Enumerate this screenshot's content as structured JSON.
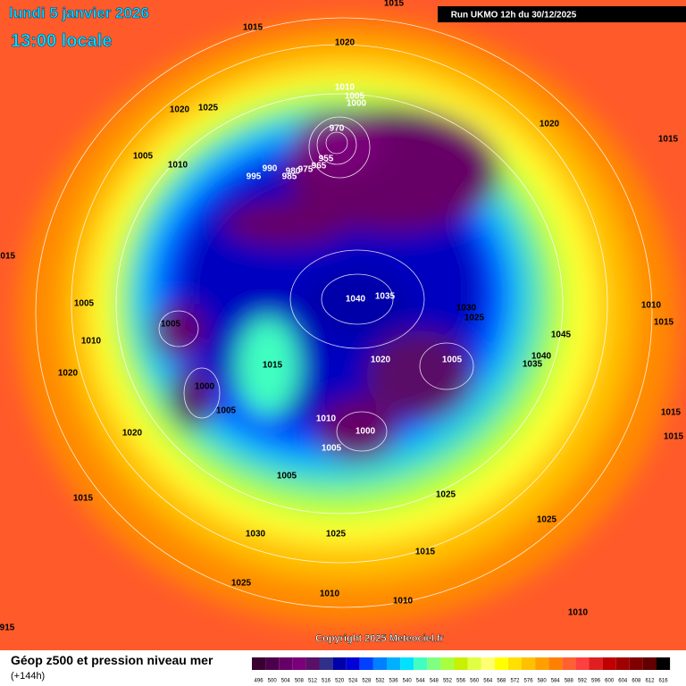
{
  "header": {
    "date": "lundi 5 janvier 2026",
    "time": "13:00 locale",
    "run": "Run UKMO 12h du 30/12/2025"
  },
  "copyright": "Copyright 2025 Meteociel.fr",
  "footer": {
    "title": "Géop z500 et pression niveau mer",
    "subtitle": "(+144h)"
  },
  "colorbar": {
    "values": [
      496,
      500,
      504,
      508,
      512,
      516,
      520,
      524,
      528,
      532,
      536,
      540,
      544,
      548,
      552,
      556,
      560,
      564,
      568,
      572,
      576,
      580,
      584,
      588,
      592,
      596,
      600,
      604,
      608,
      612,
      616
    ],
    "colors": [
      "#3a0030",
      "#4b004b",
      "#660066",
      "#7a007a",
      "#5a1066",
      "#30308a",
      "#0000a8",
      "#0000d8",
      "#0040ff",
      "#0080ff",
      "#00b0ff",
      "#00e0ff",
      "#40ffc0",
      "#80ff80",
      "#a8ff40",
      "#c8f000",
      "#e0ff40",
      "#ffff70",
      "#ffff00",
      "#ffe000",
      "#ffc000",
      "#ffa000",
      "#ff8000",
      "#ff6030",
      "#ff4040",
      "#e02020",
      "#c00000",
      "#a00000",
      "#800000",
      "#600000",
      "#000000"
    ]
  },
  "isobar_labels": [
    "1015",
    "1015",
    "1020",
    "1020",
    "1025",
    "1010",
    "1005",
    "1000",
    "970",
    "955",
    "965",
    "975",
    "980",
    "985",
    "990",
    "995",
    "1005",
    "1010",
    "1020",
    "1015",
    "1015",
    "1005",
    "1005",
    "1010",
    "1020",
    "1000",
    "1005",
    "1020",
    "1015",
    "1040",
    "1035",
    "1030",
    "1025",
    "1010",
    "1015",
    "1045",
    "1040",
    "1035",
    "1020",
    "1005",
    "1010",
    "1000",
    "1005",
    "1015",
    "1015",
    "1005",
    "1025",
    "1015",
    "1030",
    "1025",
    "1025",
    "1015",
    "1025",
    "1010",
    "1010",
    "1010",
    "915"
  ]
}
